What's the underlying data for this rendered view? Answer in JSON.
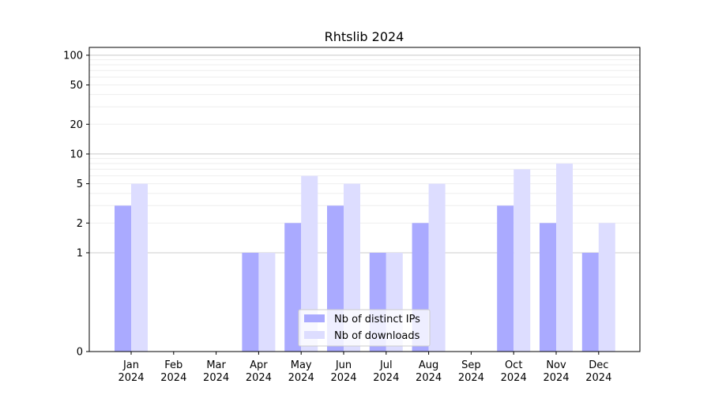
{
  "chart_data": {
    "type": "bar",
    "title": "Rhtslib 2024",
    "xlabel": "",
    "ylabel": "",
    "y_scale": "symlog",
    "ylim": [
      0,
      120
    ],
    "y_ticks": [
      0,
      1,
      2,
      5,
      10,
      20,
      50,
      100
    ],
    "grid": "horizontal",
    "legend_position": "bottom-center",
    "categories": [
      [
        "Jan",
        "2024"
      ],
      [
        "Feb",
        "2024"
      ],
      [
        "Mar",
        "2024"
      ],
      [
        "Apr",
        "2024"
      ],
      [
        "May",
        "2024"
      ],
      [
        "Jun",
        "2024"
      ],
      [
        "Jul",
        "2024"
      ],
      [
        "Aug",
        "2024"
      ],
      [
        "Sep",
        "2024"
      ],
      [
        "Oct",
        "2024"
      ],
      [
        "Nov",
        "2024"
      ],
      [
        "Dec",
        "2024"
      ]
    ],
    "series": [
      {
        "name": "Nb of distinct IPs",
        "color": "#aaaaff",
        "values": [
          3,
          0,
          0,
          1,
          2,
          3,
          1,
          2,
          0,
          3,
          2,
          1
        ]
      },
      {
        "name": "Nb of downloads",
        "color": "#ddddff",
        "values": [
          5,
          0,
          0,
          1,
          6,
          5,
          1,
          5,
          0,
          7,
          8,
          2
        ]
      }
    ]
  }
}
